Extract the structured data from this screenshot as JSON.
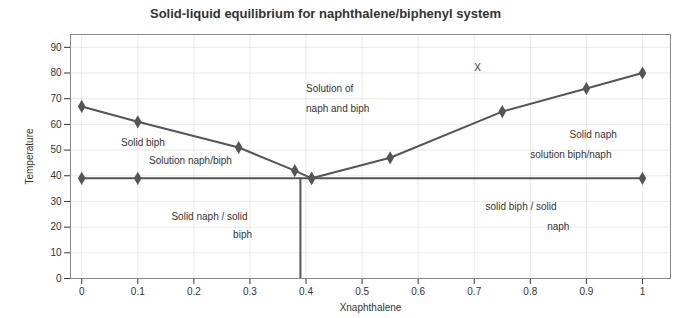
{
  "chart_data": {
    "type": "line",
    "title": "Solid-liquid equilibrium for naphthalene/biphenyl system",
    "x_label": "Xnaphthalene",
    "y_label": "Temperature",
    "xlim": [
      -0.02,
      1.05
    ],
    "ylim": [
      0,
      95
    ],
    "xticks": [
      0,
      0.1,
      0.2,
      0.3,
      0.4,
      0.5,
      0.6,
      0.7,
      0.8,
      0.9,
      1
    ],
    "yticks": [
      0,
      10,
      20,
      30,
      40,
      50,
      60,
      70,
      80,
      90
    ],
    "grid": true,
    "series": [
      {
        "color": "#555555",
        "marker": "diamond",
        "line_style": "solid",
        "x": [
          0,
          0.1,
          0.28,
          0.38,
          0.41
        ],
        "values": [
          67,
          61,
          51,
          42,
          39
        ]
      },
      {
        "color": "#555555",
        "marker": "diamond",
        "line_style": "solid",
        "x": [
          0.41,
          0.55,
          0.75,
          0.9,
          1
        ],
        "values": [
          39,
          47,
          65,
          74,
          80
        ]
      },
      {
        "color": "#555555",
        "marker": "diamond",
        "line_style": "solid",
        "x": [
          0,
          0.1,
          1
        ],
        "values": [
          39,
          39,
          39
        ]
      },
      {
        "color": "#555555",
        "marker": "none",
        "line_style": "solid",
        "x": [
          0.39,
          0.39
        ],
        "values": [
          39,
          0
        ]
      }
    ],
    "annotations": [
      {
        "text": "Solution of",
        "x": 0.4,
        "y": 74
      },
      {
        "text": "naph and biph",
        "x": 0.4,
        "y": 66
      },
      {
        "text": "X",
        "x": 0.7,
        "y": 82
      },
      {
        "text": "Solid biph",
        "x": 0.07,
        "y": 53
      },
      {
        "text": "Solution naph/biph",
        "x": 0.12,
        "y": 46
      },
      {
        "text": "Solid naph / solid",
        "x": 0.16,
        "y": 24
      },
      {
        "text": "biph",
        "x": 0.27,
        "y": 17
      },
      {
        "text": "Solid naph",
        "x": 0.87,
        "y": 56
      },
      {
        "text": "solution biph/naph",
        "x": 0.8,
        "y": 48
      },
      {
        "text": "solid biph / solid",
        "x": 0.72,
        "y": 28
      },
      {
        "text": "naph",
        "x": 0.83,
        "y": 20
      }
    ]
  }
}
